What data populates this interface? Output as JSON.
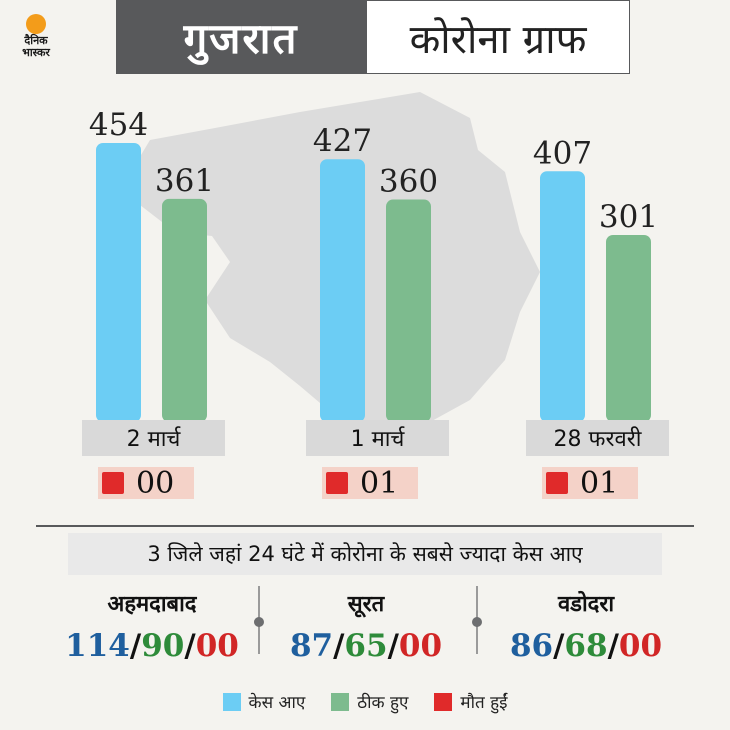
{
  "header": {
    "state": "गुजरात",
    "title": "कोरोना ग्राफ"
  },
  "logo": {
    "line1": "दैनिक",
    "line2": "भास्कर"
  },
  "colors": {
    "cases": "#6ccdf4",
    "recovered": "#7dbb8e",
    "deaths": "#e02a2a",
    "header_bg": "#58595b"
  },
  "chart_data": {
    "type": "bar",
    "categories": [
      "2 मार्च",
      "1 मार्च",
      "28 फरवरी"
    ],
    "series": [
      {
        "name": "केस आए",
        "values": [
          454,
          427,
          407
        ]
      },
      {
        "name": "ठीक हुए",
        "values": [
          361,
          360,
          301
        ]
      }
    ],
    "deaths": [
      "00",
      "01",
      "01"
    ],
    "ylim": [
      0,
      470
    ]
  },
  "subtitle": "3 जिले जहां 24 घंटे में कोरोना के सबसे ज्यादा केस आए",
  "districts": [
    {
      "name": "अहमदाबाद",
      "cases": "114",
      "recovered": "90",
      "deaths": "00"
    },
    {
      "name": "सूरत",
      "cases": "87",
      "recovered": "65",
      "deaths": "00"
    },
    {
      "name": "वडोदरा",
      "cases": "86",
      "recovered": "68",
      "deaths": "00"
    }
  ],
  "legend": [
    {
      "label": "केस आए",
      "color": "#6ccdf4",
      "icon": "cases-swatch"
    },
    {
      "label": "ठीक हुए",
      "color": "#7dbb8e",
      "icon": "recovered-swatch"
    },
    {
      "label": "मौत हुईं",
      "color": "#e02a2a",
      "icon": "deaths-swatch"
    }
  ]
}
